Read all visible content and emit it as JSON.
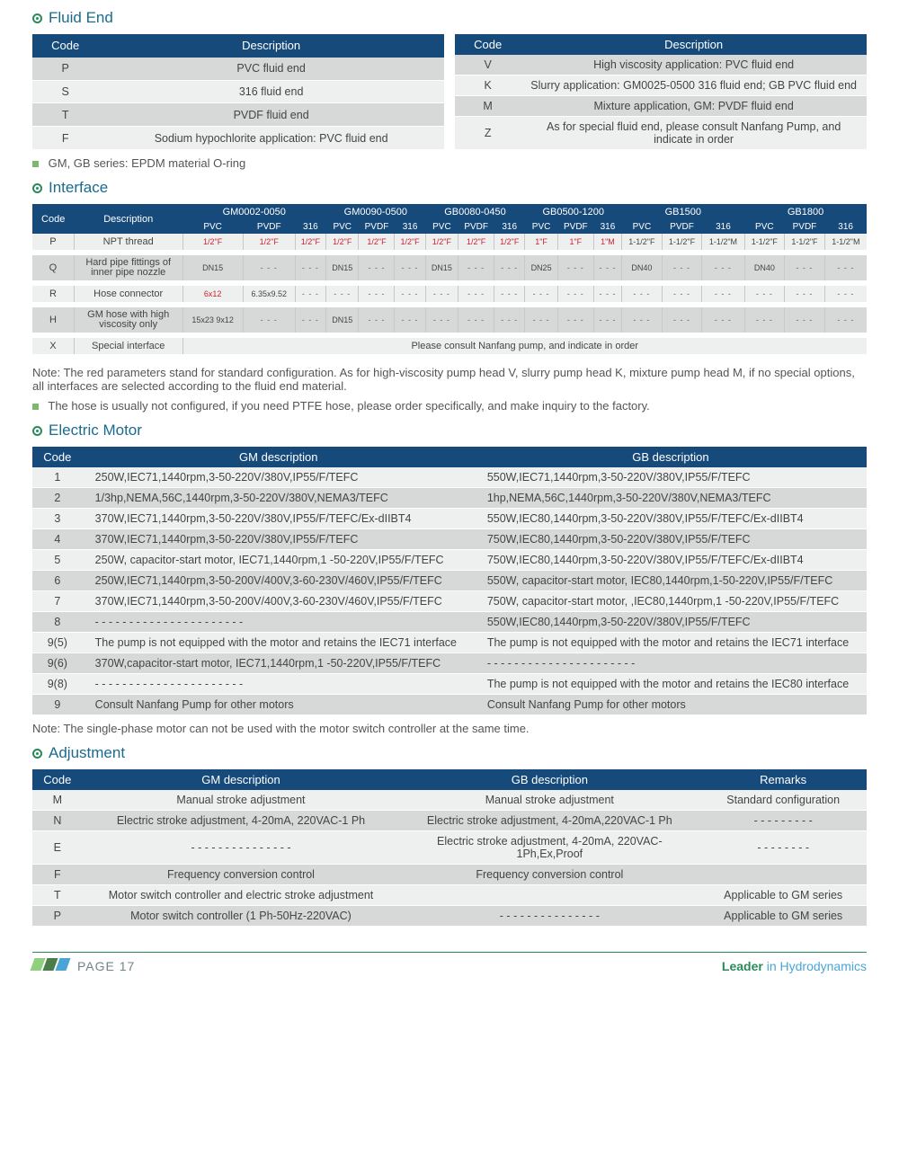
{
  "colors": {
    "accent_blue": "#1a6b8e",
    "header_blue": "#164a7a",
    "green": "#2a8a5a",
    "row_gray": "#d6d9d8",
    "row_lite": "#eef0ef",
    "red": "#c23"
  },
  "sections": {
    "fluid_end": {
      "title": "Fluid End",
      "headers": [
        "Code",
        "Description"
      ],
      "left": [
        {
          "code": "P",
          "desc": "PVC fluid end"
        },
        {
          "code": "S",
          "desc": "316 fluid end"
        },
        {
          "code": "T",
          "desc": "PVDF fluid end"
        },
        {
          "code": "F",
          "desc": "Sodium hypochlorite application: PVC fluid end"
        }
      ],
      "right": [
        {
          "code": "V",
          "desc": "High viscosity application: PVC fluid end"
        },
        {
          "code": "K",
          "desc": "Slurry application: GM0025-0500 316 fluid end; GB PVC fluid end"
        },
        {
          "code": "M",
          "desc": "Mixture application, GM: PVDF fluid end"
        },
        {
          "code": "Z",
          "desc": "As for special fluid end, please consult Nanfang Pump, and indicate in order"
        }
      ],
      "footnote": "GM, GB series: EPDM material O-ring"
    },
    "interface": {
      "title": "Interface",
      "col_groups": [
        "GM0002-0050",
        "GM0090-0500",
        "GB0080-0450",
        "GB0500-1200",
        "GB1500",
        "GB1800"
      ],
      "sub_cols": [
        "PVC",
        "PVDF",
        "316"
      ],
      "rows": [
        {
          "code": "P",
          "desc": "NPT thread",
          "cells": [
            "1/2\"F",
            "1/2\"F",
            "1/2\"F",
            "1/2\"F",
            "1/2\"F",
            "1/2\"F",
            "1/2\"F",
            "1/2\"F",
            "1/2\"F",
            "1\"F",
            "1\"F",
            "1\"M",
            "1-1/2\"F",
            "1-1/2\"F",
            "1-1/2\"M",
            "1-1/2\"F",
            "1-1/2\"F",
            "1-1/2\"M"
          ],
          "red": [
            1,
            2,
            3,
            4,
            5,
            6,
            7,
            8,
            9,
            10,
            11,
            12
          ]
        },
        {
          "code": "Q",
          "desc": "Hard pipe fittings of inner pipe nozzle",
          "cells": [
            "DN15",
            "- - -",
            "- - -",
            "DN15",
            "- - -",
            "- - -",
            "DN15",
            "- - -",
            "- - -",
            "DN25",
            "- - -",
            "- - -",
            "DN40",
            "- - -",
            "- - -",
            "DN40",
            "- - -",
            "- - -"
          ],
          "red": []
        },
        {
          "code": "R",
          "desc": "Hose connector",
          "cells": [
            "6x12",
            "6.35x9.52",
            "- - -",
            "- - -",
            "- - -",
            "- - -",
            "- - -",
            "- - -",
            "- - -",
            "- - -",
            "- - -",
            "- - -",
            "- - -",
            "- - -",
            "- - -",
            "- - -",
            "- - -",
            "- - -"
          ],
          "red": [
            1
          ]
        },
        {
          "code": "H",
          "desc": "GM hose with high viscosity only",
          "cells": [
            "15x23 9x12",
            "- - -",
            "- - -",
            "DN15",
            "- - -",
            "- - -",
            "- - -",
            "- - -",
            "- - -",
            "- - -",
            "- - -",
            "- - -",
            "- - -",
            "- - -",
            "- - -",
            "- - -",
            "- - -",
            "- - -"
          ],
          "red": []
        },
        {
          "code": "X",
          "desc": "Special interface",
          "full": "Please consult Nanfang pump, and indicate in order"
        }
      ],
      "note1": "Note: The red parameters stand for standard configuration. As for high-viscosity pump head V, slurry pump head K, mixture pump head M, if no special options, all interfaces are selected according to the fluid end material.",
      "note2": "The hose is usually not configured, if you need PTFE hose, please order specifically, and make inquiry to the factory."
    },
    "motor": {
      "title": "Electric Motor",
      "headers": [
        "Code",
        "GM description",
        "GB description"
      ],
      "rows": [
        {
          "c": "1",
          "gm": "250W,IEC71,1440rpm,3-50-220V/380V,IP55/F/TEFC",
          "gb": "550W,IEC71,1440rpm,3-50-220V/380V,IP55/F/TEFC"
        },
        {
          "c": "2",
          "gm": "1/3hp,NEMA,56C,1440rpm,3-50-220V/380V,NEMA3/TEFC",
          "gb": "1hp,NEMA,56C,1440rpm,3-50-220V/380V,NEMA3/TEFC"
        },
        {
          "c": "3",
          "gm": "370W,IEC71,1440rpm,3-50-220V/380V,IP55/F/TEFC/Ex-dIIBT4",
          "gb": "550W,IEC80,1440rpm,3-50-220V/380V,IP55/F/TEFC/Ex-dIIBT4"
        },
        {
          "c": "4",
          "gm": "370W,IEC71,1440rpm,3-50-220V/380V,IP55/F/TEFC",
          "gb": "750W,IEC80,1440rpm,3-50-220V/380V,IP55/F/TEFC"
        },
        {
          "c": "5",
          "gm": "250W, capacitor-start motor, IEC71,1440rpm,1 -50-220V,IP55/F/TEFC",
          "gb": "750W,IEC80,1440rpm,3-50-220V/380V,IP55/F/TEFC/Ex-dIIBT4"
        },
        {
          "c": "6",
          "gm": "250W,IEC71,1440rpm,3-50-200V/400V,3-60-230V/460V,IP55/F/TEFC",
          "gb": "550W, capacitor-start motor, IEC80,1440rpm,1-50-220V,IP55/F/TEFC"
        },
        {
          "c": "7",
          "gm": "370W,IEC71,1440rpm,3-50-200V/400V,3-60-230V/460V,IP55/F/TEFC",
          "gb": "750W, capacitor-start motor, ,IEC80,1440rpm,1 -50-220V,IP55/F/TEFC"
        },
        {
          "c": "8",
          "gm": "- - - - - - - - - - - - - - - - - - - - - -",
          "gb": "550W,IEC80,1440rpm,3-50-220V/380V,IP55/F/TEFC"
        },
        {
          "c": "9(5)",
          "gm": "The pump is not equipped with the motor and retains the IEC71 interface",
          "gb": "The pump is not equipped with the motor and retains the IEC71 interface"
        },
        {
          "c": "9(6)",
          "gm": "370W,capacitor-start motor, IEC71,1440rpm,1 -50-220V,IP55/F/TEFC",
          "gb": "- - - - - - - - - - - - - - - - - - - - - -"
        },
        {
          "c": "9(8)",
          "gm": "- - - - - - - - - - - - - - - - - - - - - -",
          "gb": "The pump is not equipped with the motor and retains the IEC80 interface"
        },
        {
          "c": "9",
          "gm": "Consult Nanfang Pump for other motors",
          "gb": "Consult Nanfang Pump for other motors"
        }
      ],
      "note": "Note: The single-phase motor can not be used with the motor switch controller at the same time."
    },
    "adjustment": {
      "title": "Adjustment",
      "headers": [
        "Code",
        "GM description",
        "GB description",
        "Remarks"
      ],
      "rows": [
        {
          "c": "M",
          "gm": "Manual stroke adjustment",
          "gb": "Manual stroke adjustment",
          "r": "Standard configuration"
        },
        {
          "c": "N",
          "gm": "Electric stroke adjustment, 4-20mA, 220VAC-1 Ph",
          "gb": "Electric stroke adjustment, 4-20mA,220VAC-1 Ph",
          "r": "- - - - - - - - -"
        },
        {
          "c": "E",
          "gm": "- - - - - - - - - - - - - - -",
          "gb": "Electric stroke adjustment, 4-20mA, 220VAC-1Ph,Ex,Proof",
          "r": "- - - - - - - -"
        },
        {
          "c": "F",
          "gm": "Frequency conversion control",
          "gb": "Frequency conversion control",
          "r": ""
        },
        {
          "c": "T",
          "gm": "Motor switch controller and electric stroke adjustment",
          "gb": "",
          "r": "Applicable to GM series"
        },
        {
          "c": "P",
          "gm": "Motor switch controller (1 Ph-50Hz-220VAC)",
          "gb": "- - - - - - - - - - - - - - -",
          "r": "Applicable to GM series"
        }
      ]
    }
  },
  "footer": {
    "page": "PAGE 17",
    "tagline_strong": "Leader",
    "tagline_rest": " in Hydrodynamics",
    "slash_colors": [
      "#8fcf7e",
      "#4a7d49",
      "#4aa5d6"
    ]
  }
}
